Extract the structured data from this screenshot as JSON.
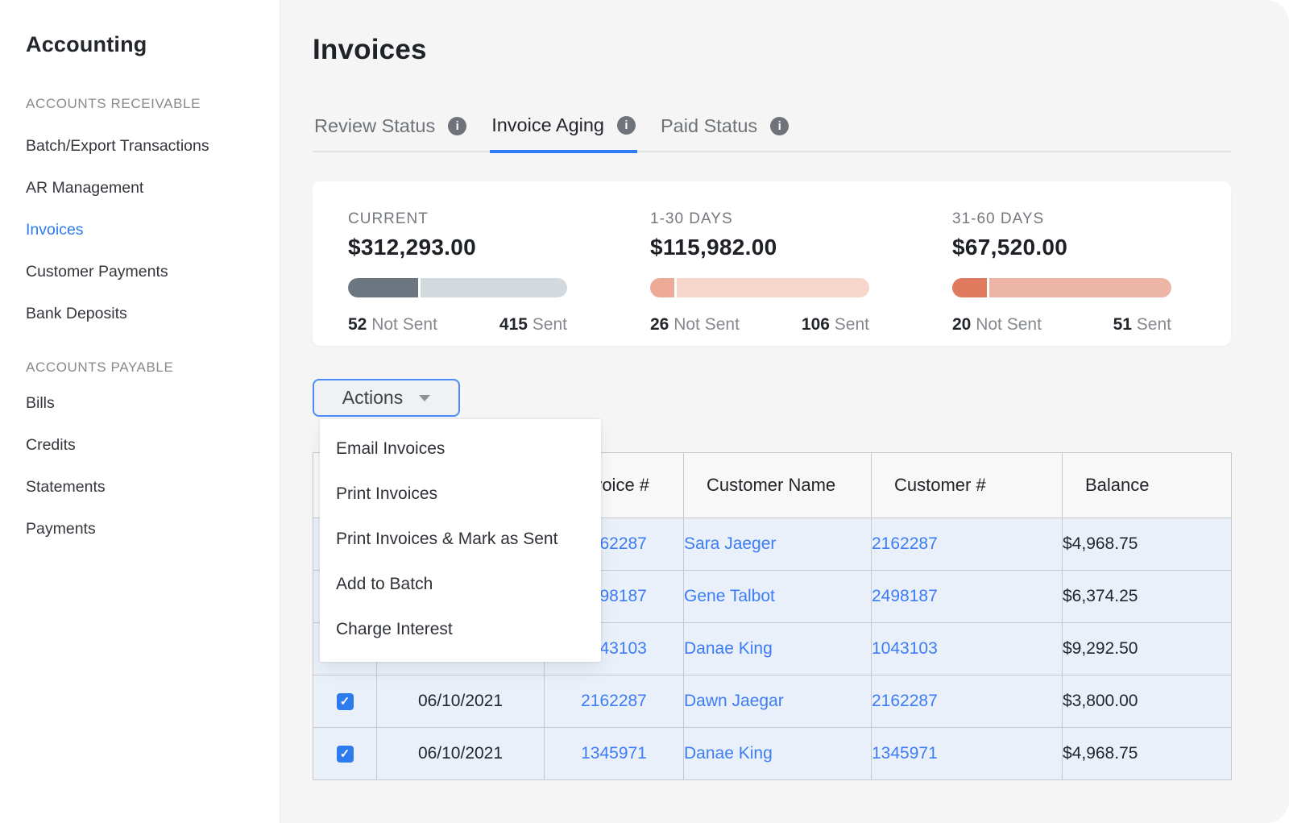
{
  "sidebar": {
    "title": "Accounting",
    "sections": [
      {
        "label": "ACCOUNTS RECEIVABLE",
        "items": [
          {
            "label": "Batch/Export Transactions",
            "active": false
          },
          {
            "label": "AR Management",
            "active": false
          },
          {
            "label": "Invoices",
            "active": true
          },
          {
            "label": "Customer Payments",
            "active": false
          },
          {
            "label": "Bank Deposits",
            "active": false
          }
        ]
      },
      {
        "label": "ACCOUNTS PAYABLE",
        "items": [
          {
            "label": "Bills",
            "active": false
          },
          {
            "label": "Credits",
            "active": false
          },
          {
            "label": "Statements",
            "active": false
          },
          {
            "label": "Payments",
            "active": false
          }
        ]
      }
    ]
  },
  "page": {
    "title": "Invoices"
  },
  "tabs": [
    {
      "label": "Review Status",
      "active": false,
      "info_icon": "i"
    },
    {
      "label": "Invoice Aging",
      "active": true,
      "info_icon": "i"
    },
    {
      "label": "Paid Status",
      "active": false,
      "info_icon": "i"
    }
  ],
  "aging": [
    {
      "label": "CURRENT",
      "amount": "$312,293.00",
      "not_sent_count": "52",
      "not_sent_label": "Not Sent",
      "sent_count": "415",
      "sent_label": "Sent",
      "bar": {
        "fill_pct": 33,
        "fill_color": "#6b7681",
        "track_color": "#d3dadf"
      }
    },
    {
      "label": "1-30 DAYS",
      "amount": "$115,982.00",
      "not_sent_count": "26",
      "not_sent_label": "Not Sent",
      "sent_count": "106",
      "sent_label": "Sent",
      "bar": {
        "fill_pct": 12,
        "fill_color": "#edaa96",
        "track_color": "#f6d5cb"
      }
    },
    {
      "label": "31-60 DAYS",
      "amount": "$67,520.00",
      "not_sent_count": "20",
      "not_sent_label": "Not Sent",
      "sent_count": "51",
      "sent_label": "Sent",
      "bar": {
        "fill_pct": 17,
        "fill_color": "#e07a5e",
        "track_color": "#ecb5a5"
      }
    }
  ],
  "actions": {
    "button_label": "Actions",
    "menu_items": [
      {
        "label": "Email Invoices"
      },
      {
        "label": "Print Invoices"
      },
      {
        "label": "Print Invoices & Mark as Sent"
      },
      {
        "label": "Add to Batch"
      },
      {
        "label": "Charge Interest"
      }
    ]
  },
  "invoice_table": {
    "headers": {
      "checkbox": "",
      "date": "",
      "invoice": "Invoice #",
      "customer_name": "Customer Name",
      "customer_number": "Customer #",
      "balance": "Balance"
    },
    "rows": [
      {
        "checked": false,
        "date": "",
        "invoice": "2162287",
        "customer_name": "Sara Jaeger",
        "customer_number": "2162287",
        "balance": "$4,968.75"
      },
      {
        "checked": false,
        "date": "",
        "invoice": "2498187",
        "customer_name": "Gene Talbot",
        "customer_number": "2498187",
        "balance": "$6,374.25"
      },
      {
        "checked": false,
        "date": "",
        "invoice": "1043103",
        "customer_name": "Danae King",
        "customer_number": "1043103",
        "balance": "$9,292.50"
      },
      {
        "checked": true,
        "date": "06/10/2021",
        "invoice": "2162287",
        "customer_name": "Dawn Jaegar",
        "customer_number": "2162287",
        "balance": "$3,800.00"
      },
      {
        "checked": true,
        "date": "06/10/2021",
        "invoice": "1345971",
        "customer_name": "Danae King",
        "customer_number": "1345971",
        "balance": "$4,968.75"
      }
    ]
  },
  "colors": {
    "accent_blue": "#2f7df6",
    "link_blue": "#3c7cf5",
    "row_background": "#e9f0fa",
    "checkbox_blue": "#2e7bf0"
  }
}
